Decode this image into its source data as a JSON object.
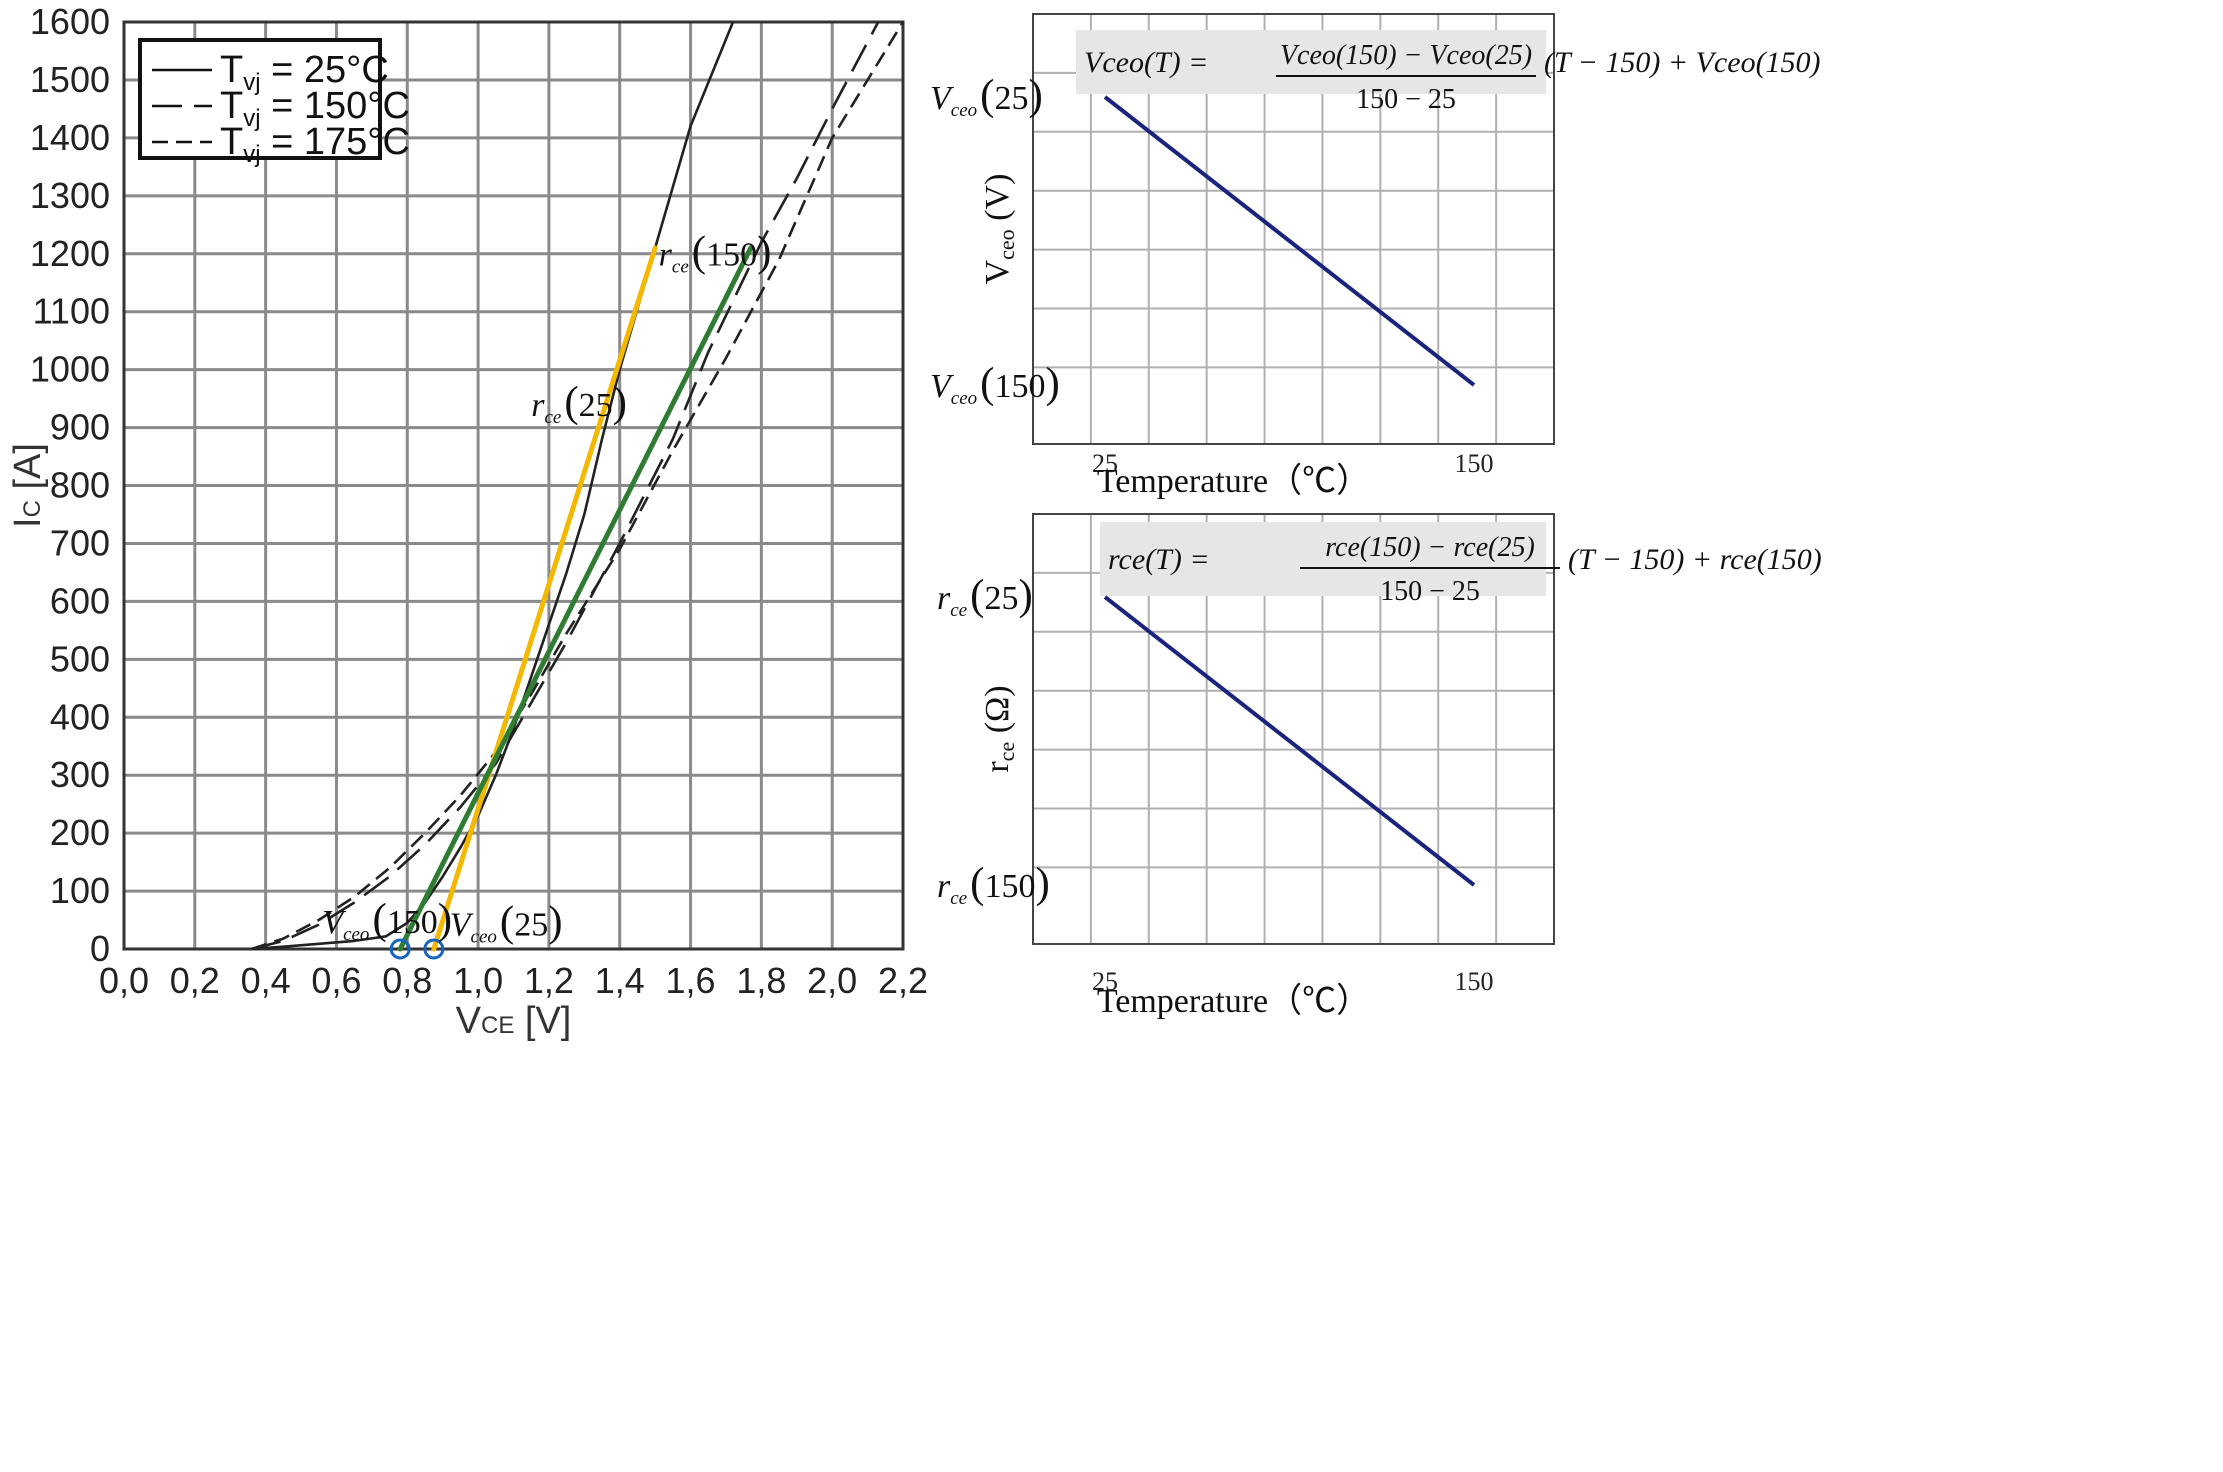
{
  "chart_data": [
    {
      "type": "line",
      "title": "",
      "xlabel": "VCE [V]",
      "xlabel_main": "V",
      "xlabel_sub": "CE",
      "xlabel_unit": "[V]",
      "ylabel": "IC [A]",
      "ylabel_main": "I",
      "ylabel_sub": "C",
      "ylabel_unit": "[A]",
      "xlim": [
        0,
        2.2
      ],
      "ylim": [
        0,
        1600
      ],
      "x_ticks": [
        "0,0",
        "0,2",
        "0,4",
        "0,6",
        "0,8",
        "1,0",
        "1,2",
        "1,4",
        "1,6",
        "1,8",
        "2,0",
        "2,2"
      ],
      "y_ticks": [
        "0",
        "100",
        "200",
        "300",
        "400",
        "500",
        "600",
        "700",
        "800",
        "900",
        "1000",
        "1100",
        "1200",
        "1300",
        "1400",
        "1500",
        "1600"
      ],
      "grid": true,
      "legend_position": "top-left",
      "legend": [
        {
          "main": "T",
          "sub": "vj",
          "rest": " = 25°C",
          "style": "solid"
        },
        {
          "main": "T",
          "sub": "vj",
          "rest": " = 150°C",
          "style": "long-dash"
        },
        {
          "main": "T",
          "sub": "vj",
          "rest": " = 175°C",
          "style": "short-dash"
        }
      ],
      "series": [
        {
          "name": "Tvj = 25°C",
          "style": "solid",
          "color": "#222222",
          "points": [
            [
              0.36,
              0
            ],
            [
              0.45,
              4
            ],
            [
              0.55,
              9
            ],
            [
              0.65,
              14
            ],
            [
              0.74,
              22
            ],
            [
              0.8,
              45
            ],
            [
              0.85,
              80
            ],
            [
              0.9,
              125
            ],
            [
              0.95,
              175
            ],
            [
              1.0,
              230
            ],
            [
              1.05,
              300
            ],
            [
              1.1,
              380
            ],
            [
              1.15,
              470
            ],
            [
              1.2,
              560
            ],
            [
              1.25,
              650
            ],
            [
              1.3,
              750
            ],
            [
              1.35,
              880
            ],
            [
              1.4,
              1000
            ],
            [
              1.5,
              1210
            ],
            [
              1.6,
              1420
            ],
            [
              1.72,
              1600
            ]
          ]
        },
        {
          "name": "Tvj = 150°C",
          "style": "long-dash",
          "color": "#222222",
          "points": [
            [
              0.36,
              0
            ],
            [
              0.45,
              14
            ],
            [
              0.55,
              42
            ],
            [
              0.65,
              80
            ],
            [
              0.75,
              125
            ],
            [
              0.85,
              180
            ],
            [
              0.95,
              245
            ],
            [
              1.05,
              320
            ],
            [
              1.15,
              425
            ],
            [
              1.25,
              530
            ],
            [
              1.4,
              700
            ],
            [
              1.55,
              880
            ],
            [
              1.65,
              1030
            ],
            [
              1.8,
              1220
            ],
            [
              1.9,
              1330
            ],
            [
              2.0,
              1450
            ],
            [
              2.13,
              1600
            ]
          ]
        },
        {
          "name": "Tvj = 175°C",
          "style": "short-dash",
          "color": "#222222",
          "points": [
            [
              0.36,
              0
            ],
            [
              0.45,
              18
            ],
            [
              0.55,
              50
            ],
            [
              0.65,
              90
            ],
            [
              0.75,
              140
            ],
            [
              0.85,
              200
            ],
            [
              0.95,
              265
            ],
            [
              1.05,
              340
            ],
            [
              1.15,
              440
            ],
            [
              1.25,
              545
            ],
            [
              1.4,
              690
            ],
            [
              1.55,
              860
            ],
            [
              1.7,
              1020
            ],
            [
              1.85,
              1190
            ],
            [
              2.0,
              1400
            ],
            [
              2.2,
              1600
            ]
          ]
        }
      ],
      "tangent_lines": [
        {
          "name": "rce(25)",
          "color": "#f5b800",
          "from": [
            0.875,
            0
          ],
          "to": [
            1.5,
            1210
          ]
        },
        {
          "name": "rce(150)",
          "color": "#2e7d32",
          "from": [
            0.78,
            0
          ],
          "to": [
            1.77,
            1210
          ]
        }
      ],
      "markers": [
        {
          "name": "Vceo(150) point",
          "x": 0.78,
          "y": 0,
          "color": "#1565c0"
        },
        {
          "name": "Vceo(25) point",
          "x": 0.875,
          "y": 0,
          "color": "#1565c0"
        }
      ],
      "annotations": [
        {
          "sym": "r",
          "sub": "ce",
          "arg": "150",
          "x": 1.51,
          "y": 1180
        },
        {
          "sym": "r",
          "sub": "ce",
          "arg": "25",
          "x": 1.15,
          "y": 920
        },
        {
          "sym": "V",
          "sub": "ceo",
          "arg": "150",
          "x": 0.56,
          "y": 28
        },
        {
          "sym": "V",
          "sub": "ceo",
          "arg": "25",
          "x": 0.92,
          "y": 23
        }
      ]
    },
    {
      "type": "line",
      "xlabel": "Temperature（℃）",
      "ylabel_main": "V",
      "ylabel_sub": "ceo",
      "ylabel_unit": "(V)",
      "x_tick_labels": [
        "25",
        "150"
      ],
      "y_tick_labels": [
        {
          "sym": "V",
          "sub": "ceo",
          "arg": "25"
        },
        {
          "sym": "V",
          "sub": "ceo",
          "arg": "150"
        }
      ],
      "x": [
        25,
        150
      ],
      "values": [
        "Vceo(25)",
        "Vceo(150)"
      ],
      "line_color": "#1a237e",
      "formula": {
        "lhs": "Vceo(T)",
        "numerator": "Vceo(150) − Vceo(25)",
        "denominator": "150 − 25",
        "tail": "(T − 150) + Vceo(150)"
      }
    },
    {
      "type": "line",
      "xlabel": "Temperature（℃）",
      "ylabel_main": "r",
      "ylabel_sub": "ce",
      "ylabel_unit": "(Ω)",
      "x_tick_labels": [
        "25",
        "150"
      ],
      "y_tick_labels": [
        {
          "sym": "r",
          "sub": "ce",
          "arg": "25"
        },
        {
          "sym": "r",
          "sub": "ce",
          "arg": "150"
        }
      ],
      "x": [
        25,
        150
      ],
      "values": [
        "rce(25)",
        "rce(150)"
      ],
      "line_color": "#1a237e",
      "formula": {
        "lhs": "rce(T)",
        "numerator": "rce(150) − rce(25)",
        "denominator": "150 − 25",
        "tail": "(T − 150) + rce(150)"
      }
    }
  ]
}
